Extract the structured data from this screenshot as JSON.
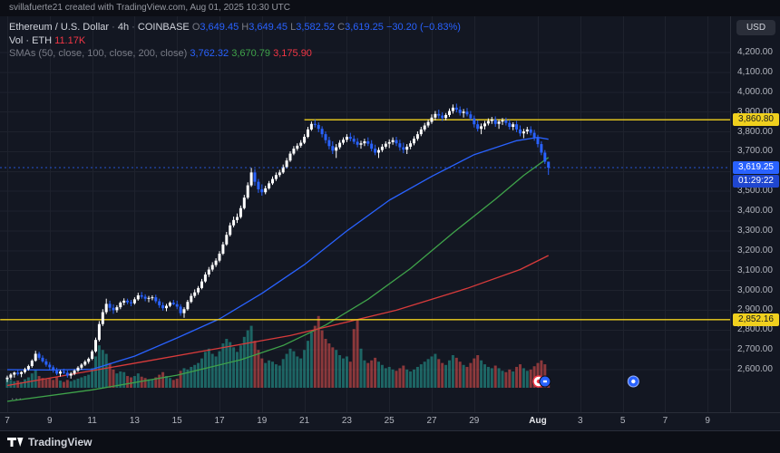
{
  "topbar": {
    "attribution": "svillafuerte21 created with TradingView.com, Aug 01, 2025 10:30 UTC"
  },
  "legend": {
    "symbol_title": "Ethereum / U.S. Dollar",
    "sep": "·",
    "interval": "4h",
    "exchange": "COINBASE",
    "o_label": "O",
    "o_value": "3,649.45",
    "h_label": "H",
    "h_value": "3,649.45",
    "l_label": "L",
    "l_value": "3,582.52",
    "c_label": "C",
    "c_value": "3,619.25",
    "change": "−30.20 (−0.83%)",
    "vol_label": "Vol · ETH",
    "vol_value": "11.17K",
    "smas_label": "SMAs (50, close, 100, close, 200, close)",
    "sma50_value": "3,762.32",
    "sma100_value": "3,670.79",
    "sma200_value": "3,175.90",
    "more": "..."
  },
  "axis": {
    "currency_button": "USD",
    "badges": {
      "resistance": "3,860.80",
      "support": "2,852.16",
      "last": "3,619.25",
      "countdown": "01:29:22"
    }
  },
  "footer": {
    "logo_text": "TradingView"
  },
  "chart_data": {
    "type": "candlestick",
    "title": "Ethereum / U.S. Dollar · 4h · COINBASE",
    "symbol": "ETHUSD",
    "interval": "4h",
    "exchange": "COINBASE",
    "legend_last": {
      "open": 3649.45,
      "high": 3649.45,
      "low": 3582.52,
      "close": 3619.25,
      "change": -30.2,
      "change_pct": -0.83,
      "volume_k": 11.17
    },
    "sma_values": {
      "sma50": 3762.32,
      "sma100": 3670.79,
      "sma200": 3175.9
    },
    "price_axis": {
      "min_label": 2600,
      "max_label": 4200,
      "step": 100
    },
    "time_axis": [
      [
        "7",
        0
      ],
      [
        "9",
        12
      ],
      [
        "11",
        24
      ],
      [
        "13",
        36
      ],
      [
        "15",
        48
      ],
      [
        "17",
        60
      ],
      [
        "19",
        72
      ],
      [
        "21",
        84
      ],
      [
        "23",
        96
      ],
      [
        "25",
        108
      ],
      [
        "27",
        120
      ],
      [
        "29",
        132
      ],
      [
        "Aug",
        150
      ],
      [
        "3",
        162
      ],
      [
        "5",
        174
      ],
      [
        "7",
        186
      ],
      [
        "9",
        198
      ]
    ],
    "start_date": "Jul 7",
    "candles": [
      [
        2552,
        2570,
        2538,
        2560,
        14
      ],
      [
        2560,
        2582,
        2550,
        2575,
        12
      ],
      [
        2575,
        2590,
        2560,
        2585,
        10
      ],
      [
        2585,
        2600,
        2570,
        2578,
        11
      ],
      [
        2578,
        2592,
        2562,
        2588,
        9
      ],
      [
        2588,
        2610,
        2580,
        2602,
        13
      ],
      [
        2602,
        2625,
        2595,
        2618,
        16
      ],
      [
        2618,
        2652,
        2610,
        2645,
        22
      ],
      [
        2645,
        2695,
        2640,
        2680,
        28
      ],
      [
        2680,
        2690,
        2650,
        2660,
        18
      ],
      [
        2660,
        2672,
        2635,
        2642,
        15
      ],
      [
        2642,
        2655,
        2615,
        2625,
        13
      ],
      [
        2625,
        2638,
        2600,
        2612,
        14
      ],
      [
        2612,
        2622,
        2585,
        2595,
        12
      ],
      [
        2595,
        2610,
        2572,
        2580,
        16
      ],
      [
        2580,
        2598,
        2565,
        2590,
        11
      ],
      [
        2590,
        2605,
        2578,
        2584,
        9
      ],
      [
        2584,
        2596,
        2560,
        2570,
        12
      ],
      [
        2570,
        2588,
        2555,
        2580,
        10
      ],
      [
        2580,
        2602,
        2572,
        2595,
        12
      ],
      [
        2595,
        2618,
        2588,
        2610,
        14
      ],
      [
        2610,
        2632,
        2600,
        2625,
        16
      ],
      [
        2625,
        2648,
        2618,
        2640,
        18
      ],
      [
        2640,
        2662,
        2630,
        2655,
        20
      ],
      [
        2655,
        2700,
        2648,
        2692,
        30
      ],
      [
        2692,
        2762,
        2685,
        2750,
        48
      ],
      [
        2750,
        2845,
        2742,
        2830,
        65
      ],
      [
        2830,
        2905,
        2820,
        2890,
        58
      ],
      [
        2890,
        2958,
        2880,
        2932,
        52
      ],
      [
        2932,
        2948,
        2895,
        2912,
        38
      ],
      [
        2912,
        2930,
        2882,
        2900,
        28
      ],
      [
        2900,
        2925,
        2888,
        2915,
        22
      ],
      [
        2915,
        2945,
        2905,
        2938,
        25
      ],
      [
        2938,
        2960,
        2925,
        2948,
        24
      ],
      [
        2948,
        2958,
        2930,
        2940,
        18
      ],
      [
        2940,
        2952,
        2920,
        2935,
        16
      ],
      [
        2935,
        2965,
        2928,
        2955,
        18
      ],
      [
        2955,
        2988,
        2948,
        2975,
        22
      ],
      [
        2975,
        2992,
        2958,
        2968,
        17
      ],
      [
        2968,
        2980,
        2945,
        2958,
        15
      ],
      [
        2958,
        2972,
        2940,
        2962,
        13
      ],
      [
        2962,
        2975,
        2950,
        2965,
        12
      ],
      [
        2965,
        2978,
        2935,
        2945,
        16
      ],
      [
        2945,
        2958,
        2912,
        2925,
        20
      ],
      [
        2925,
        2940,
        2898,
        2910,
        24
      ],
      [
        2910,
        2932,
        2895,
        2922,
        18
      ],
      [
        2922,
        2945,
        2915,
        2938,
        15
      ],
      [
        2938,
        2952,
        2925,
        2930,
        12
      ],
      [
        2930,
        2948,
        2905,
        2918,
        14
      ],
      [
        2918,
        2930,
        2872,
        2885,
        26
      ],
      [
        2885,
        2915,
        2862,
        2905,
        30
      ],
      [
        2905,
        2952,
        2898,
        2942,
        28
      ],
      [
        2942,
        2985,
        2935,
        2972,
        32
      ],
      [
        2972,
        3005,
        2962,
        2990,
        35
      ],
      [
        2990,
        3022,
        2978,
        3012,
        38
      ],
      [
        3012,
        3058,
        3005,
        3045,
        45
      ],
      [
        3045,
        3092,
        3038,
        3080,
        55
      ],
      [
        3080,
        3118,
        3068,
        3105,
        60
      ],
      [
        3105,
        3142,
        3095,
        3128,
        52
      ],
      [
        3128,
        3162,
        3118,
        3150,
        48
      ],
      [
        3150,
        3198,
        3142,
        3185,
        56
      ],
      [
        3185,
        3245,
        3178,
        3232,
        68
      ],
      [
        3232,
        3295,
        3225,
        3280,
        75
      ],
      [
        3280,
        3342,
        3272,
        3328,
        70
      ],
      [
        3328,
        3372,
        3318,
        3355,
        62
      ],
      [
        3355,
        3388,
        3340,
        3370,
        55
      ],
      [
        3370,
        3428,
        3362,
        3415,
        65
      ],
      [
        3415,
        3482,
        3408,
        3468,
        78
      ],
      [
        3468,
        3545,
        3460,
        3530,
        88
      ],
      [
        3530,
        3618,
        3522,
        3595,
        95
      ],
      [
        3595,
        3612,
        3528,
        3548,
        72
      ],
      [
        3548,
        3562,
        3492,
        3510,
        58
      ],
      [
        3510,
        3535,
        3478,
        3495,
        45
      ],
      [
        3495,
        3528,
        3485,
        3515,
        38
      ],
      [
        3515,
        3552,
        3508,
        3540,
        42
      ],
      [
        3540,
        3575,
        3532,
        3562,
        40
      ],
      [
        3562,
        3595,
        3552,
        3582,
        36
      ],
      [
        3582,
        3608,
        3572,
        3595,
        34
      ],
      [
        3595,
        3635,
        3588,
        3622,
        44
      ],
      [
        3622,
        3668,
        3615,
        3655,
        52
      ],
      [
        3655,
        3702,
        3648,
        3690,
        60
      ],
      [
        3690,
        3728,
        3682,
        3715,
        56
      ],
      [
        3715,
        3742,
        3705,
        3730,
        48
      ],
      [
        3730,
        3758,
        3720,
        3745,
        45
      ],
      [
        3745,
        3788,
        3738,
        3775,
        58
      ],
      [
        3775,
        3825,
        3768,
        3812,
        72
      ],
      [
        3812,
        3852,
        3805,
        3840,
        85
      ],
      [
        3840,
        3862,
        3822,
        3835,
        95
      ],
      [
        3835,
        3848,
        3798,
        3815,
        110
      ],
      [
        3815,
        3828,
        3772,
        3788,
        88
      ],
      [
        3788,
        3802,
        3742,
        3758,
        75
      ],
      [
        3758,
        3775,
        3712,
        3728,
        68
      ],
      [
        3728,
        3752,
        3688,
        3705,
        62
      ],
      [
        3705,
        3738,
        3668,
        3722,
        58
      ],
      [
        3722,
        3758,
        3712,
        3745,
        50
      ],
      [
        3745,
        3772,
        3735,
        3760,
        45
      ],
      [
        3760,
        3788,
        3748,
        3775,
        48
      ],
      [
        3775,
        3795,
        3752,
        3765,
        40
      ],
      [
        3765,
        3782,
        3738,
        3750,
        90
      ],
      [
        3750,
        3768,
        3722,
        3735,
        105
      ],
      [
        3735,
        3755,
        3715,
        3742,
        60
      ],
      [
        3742,
        3765,
        3728,
        3752,
        42
      ],
      [
        3752,
        3772,
        3728,
        3740,
        38
      ],
      [
        3740,
        3758,
        3702,
        3715,
        42
      ],
      [
        3715,
        3735,
        3682,
        3695,
        46
      ],
      [
        3695,
        3722,
        3668,
        3708,
        40
      ],
      [
        3708,
        3738,
        3698,
        3725,
        35
      ],
      [
        3725,
        3752,
        3715,
        3740,
        30
      ],
      [
        3740,
        3762,
        3718,
        3748,
        32
      ],
      [
        3748,
        3772,
        3735,
        3758,
        28
      ],
      [
        3758,
        3775,
        3728,
        3742,
        26
      ],
      [
        3742,
        3760,
        3705,
        3722,
        30
      ],
      [
        3722,
        3745,
        3692,
        3710,
        34
      ],
      [
        3710,
        3738,
        3688,
        3725,
        28
      ],
      [
        3725,
        3755,
        3712,
        3742,
        25
      ],
      [
        3742,
        3778,
        3732,
        3765,
        28
      ],
      [
        3765,
        3802,
        3755,
        3788,
        32
      ],
      [
        3788,
        3825,
        3778,
        3812,
        36
      ],
      [
        3812,
        3845,
        3802,
        3832,
        40
      ],
      [
        3832,
        3862,
        3822,
        3850,
        44
      ],
      [
        3850,
        3888,
        3840,
        3872,
        48
      ],
      [
        3872,
        3905,
        3858,
        3890,
        52
      ],
      [
        3890,
        3912,
        3868,
        3882,
        44
      ],
      [
        3882,
        3898,
        3855,
        3870,
        38
      ],
      [
        3870,
        3895,
        3858,
        3885,
        35
      ],
      [
        3885,
        3918,
        3875,
        3905,
        42
      ],
      [
        3905,
        3938,
        3892,
        3922,
        50
      ],
      [
        3922,
        3942,
        3898,
        3912,
        46
      ],
      [
        3912,
        3928,
        3882,
        3895,
        40
      ],
      [
        3895,
        3915,
        3872,
        3902,
        35
      ],
      [
        3902,
        3920,
        3878,
        3888,
        32
      ],
      [
        3888,
        3905,
        3858,
        3868,
        38
      ],
      [
        3868,
        3882,
        3822,
        3838,
        45
      ],
      [
        3838,
        3858,
        3802,
        3815,
        50
      ],
      [
        3815,
        3842,
        3788,
        3828,
        42
      ],
      [
        3828,
        3855,
        3812,
        3842,
        36
      ],
      [
        3842,
        3868,
        3832,
        3855,
        32
      ],
      [
        3855,
        3875,
        3840,
        3862,
        30
      ],
      [
        3862,
        3878,
        3825,
        3840,
        34
      ],
      [
        3840,
        3862,
        3815,
        3852,
        30
      ],
      [
        3852,
        3870,
        3835,
        3858,
        26
      ],
      [
        3858,
        3872,
        3832,
        3845,
        24
      ],
      [
        3845,
        3860,
        3812,
        3825,
        28
      ],
      [
        3825,
        3848,
        3808,
        3838,
        25
      ],
      [
        3838,
        3855,
        3798,
        3812,
        32
      ],
      [
        3812,
        3832,
        3778,
        3792,
        36
      ],
      [
        3792,
        3815,
        3768,
        3802,
        30
      ],
      [
        3802,
        3825,
        3788,
        3812,
        26
      ],
      [
        3812,
        3828,
        3782,
        3795,
        28
      ],
      [
        3795,
        3810,
        3755,
        3772,
        33
      ],
      [
        3772,
        3785,
        3722,
        3738,
        38
      ],
      [
        3738,
        3752,
        3682,
        3695,
        42
      ],
      [
        3695,
        3708,
        3638,
        3649.45,
        36
      ],
      [
        3649.45,
        3649.45,
        3582.52,
        3619.25,
        11.17
      ]
    ],
    "volume_unit": "K",
    "sma_lines": [
      {
        "name": "SMA 50",
        "color": "#2962ff",
        "points": [
          [
            0,
            2600
          ],
          [
            12,
            2598
          ],
          [
            24,
            2602
          ],
          [
            36,
            2668
          ],
          [
            48,
            2760
          ],
          [
            60,
            2856
          ],
          [
            72,
            2985
          ],
          [
            84,
            3130
          ],
          [
            96,
            3300
          ],
          [
            108,
            3455
          ],
          [
            120,
            3575
          ],
          [
            132,
            3685
          ],
          [
            144,
            3755
          ],
          [
            150,
            3772
          ],
          [
            153,
            3762.32
          ]
        ]
      },
      {
        "name": "SMA 100",
        "color": "#3fa34a",
        "points": [
          [
            0,
            2440
          ],
          [
            24,
            2498
          ],
          [
            48,
            2572
          ],
          [
            66,
            2650
          ],
          [
            78,
            2722
          ],
          [
            90,
            2825
          ],
          [
            102,
            2955
          ],
          [
            114,
            3110
          ],
          [
            126,
            3290
          ],
          [
            138,
            3460
          ],
          [
            146,
            3580
          ],
          [
            153,
            3670.79
          ]
        ]
      },
      {
        "name": "SMA 200",
        "color": "#d93b3b",
        "points": [
          [
            0,
            2520
          ],
          [
            40,
            2645
          ],
          [
            80,
            2772
          ],
          [
            110,
            2900
          ],
          [
            130,
            3010
          ],
          [
            145,
            3105
          ],
          [
            153,
            3175.9
          ]
        ]
      }
    ],
    "levels": [
      {
        "price": 3860.8,
        "label": "3,860.80",
        "from_index": 84
      },
      {
        "price": 2852.16,
        "label": "2,852.16",
        "from_index": -2
      }
    ],
    "last_price": 3619.25,
    "countdown": "01:29:22",
    "event_markers": [
      {
        "index": 151
      },
      {
        "index": 177
      }
    ],
    "colors": {
      "background": "#131722",
      "grid": "#1e222d",
      "border": "#2a2e39",
      "up": "#ffffff",
      "down": "#2962ff",
      "vol_up": "#26a69a",
      "vol_down": "#ef5350",
      "level_yellow": "#f0d01e",
      "last_price_line": "#2962ff",
      "sma50": "#2962ff",
      "sma100": "#3fa34a",
      "sma200": "#d93b3b"
    }
  }
}
